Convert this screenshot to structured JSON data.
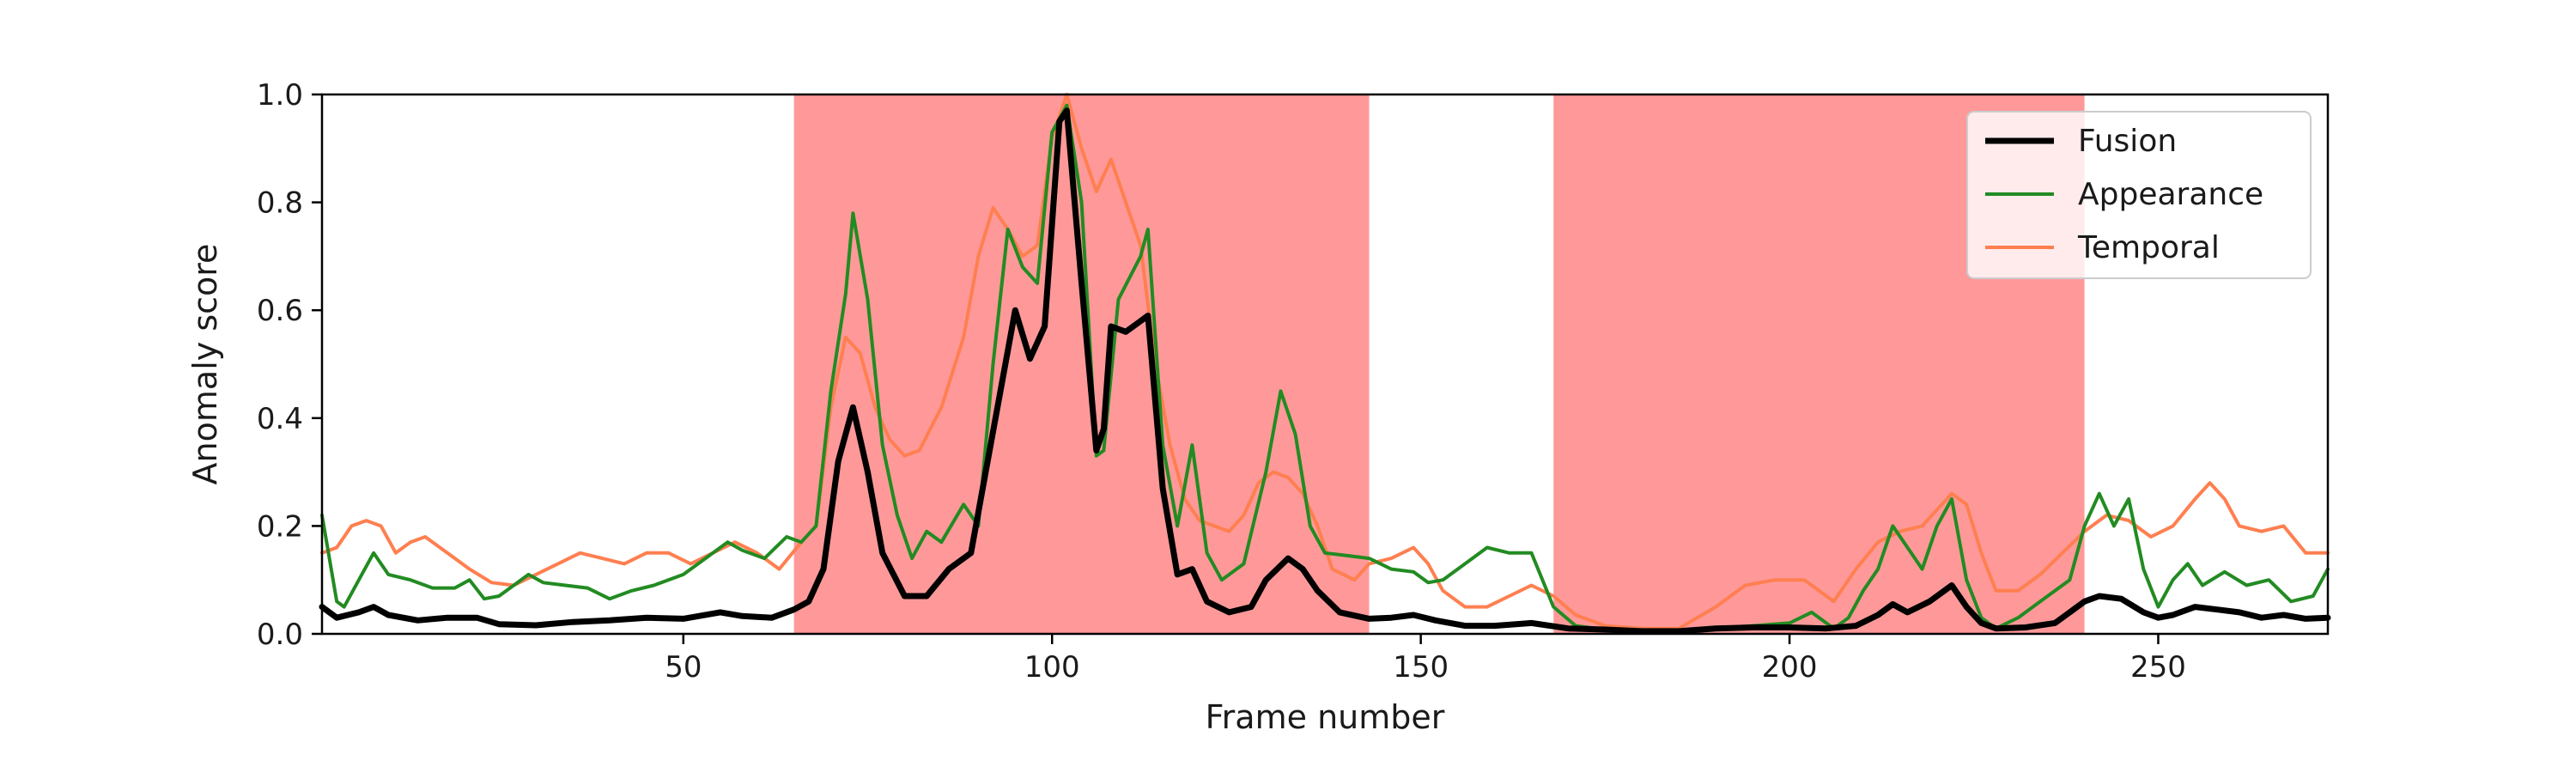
{
  "chart_data": {
    "type": "line",
    "xlabel": "Frame number",
    "ylabel": "Anomaly score",
    "xlim": [
      1,
      273
    ],
    "ylim": [
      0,
      1.0
    ],
    "x_ticks": [
      50,
      100,
      150,
      200,
      250
    ],
    "y_ticks": [
      0.0,
      0.2,
      0.4,
      0.6,
      0.8,
      1.0
    ],
    "y_tick_labels": [
      "0.0",
      "0.2",
      "0.4",
      "0.6",
      "0.8",
      "1.0"
    ],
    "grid": false,
    "legend_position": "top-right",
    "shaded_regions": [
      {
        "start": 65,
        "end": 143,
        "color": "#ff9999"
      },
      {
        "start": 168,
        "end": 240,
        "color": "#ff9999"
      }
    ],
    "series": [
      {
        "name": "Fusion",
        "color": "#000000",
        "line_width": 7,
        "points": [
          [
            1,
            0.05
          ],
          [
            3,
            0.03
          ],
          [
            6,
            0.04
          ],
          [
            8,
            0.05
          ],
          [
            10,
            0.035
          ],
          [
            14,
            0.025
          ],
          [
            18,
            0.03
          ],
          [
            22,
            0.03
          ],
          [
            25,
            0.018
          ],
          [
            30,
            0.016
          ],
          [
            35,
            0.022
          ],
          [
            40,
            0.025
          ],
          [
            45,
            0.03
          ],
          [
            50,
            0.028
          ],
          [
            55,
            0.04
          ],
          [
            58,
            0.033
          ],
          [
            62,
            0.03
          ],
          [
            65,
            0.045
          ],
          [
            67,
            0.06
          ],
          [
            69,
            0.12
          ],
          [
            71,
            0.32
          ],
          [
            73,
            0.42
          ],
          [
            75,
            0.3
          ],
          [
            77,
            0.15
          ],
          [
            80,
            0.07
          ],
          [
            83,
            0.07
          ],
          [
            86,
            0.12
          ],
          [
            89,
            0.15
          ],
          [
            91,
            0.3
          ],
          [
            93,
            0.45
          ],
          [
            95,
            0.6
          ],
          [
            97,
            0.51
          ],
          [
            99,
            0.57
          ],
          [
            101,
            0.95
          ],
          [
            102,
            0.97
          ],
          [
            104,
            0.65
          ],
          [
            106,
            0.34
          ],
          [
            107,
            0.38
          ],
          [
            108,
            0.57
          ],
          [
            110,
            0.56
          ],
          [
            112,
            0.58
          ],
          [
            113,
            0.59
          ],
          [
            115,
            0.27
          ],
          [
            117,
            0.11
          ],
          [
            119,
            0.12
          ],
          [
            121,
            0.06
          ],
          [
            124,
            0.04
          ],
          [
            127,
            0.05
          ],
          [
            129,
            0.1
          ],
          [
            132,
            0.14
          ],
          [
            134,
            0.12
          ],
          [
            136,
            0.08
          ],
          [
            139,
            0.04
          ],
          [
            143,
            0.028
          ],
          [
            146,
            0.03
          ],
          [
            149,
            0.035
          ],
          [
            152,
            0.025
          ],
          [
            156,
            0.015
          ],
          [
            160,
            0.015
          ],
          [
            165,
            0.02
          ],
          [
            170,
            0.01
          ],
          [
            175,
            0.008
          ],
          [
            180,
            0.005
          ],
          [
            185,
            0.005
          ],
          [
            190,
            0.01
          ],
          [
            195,
            0.012
          ],
          [
            200,
            0.012
          ],
          [
            205,
            0.01
          ],
          [
            209,
            0.015
          ],
          [
            212,
            0.035
          ],
          [
            214,
            0.055
          ],
          [
            216,
            0.04
          ],
          [
            219,
            0.06
          ],
          [
            222,
            0.09
          ],
          [
            224,
            0.05
          ],
          [
            226,
            0.02
          ],
          [
            228,
            0.01
          ],
          [
            232,
            0.012
          ],
          [
            236,
            0.02
          ],
          [
            238,
            0.04
          ],
          [
            240,
            0.06
          ],
          [
            242,
            0.07
          ],
          [
            245,
            0.065
          ],
          [
            248,
            0.04
          ],
          [
            250,
            0.03
          ],
          [
            252,
            0.035
          ],
          [
            255,
            0.05
          ],
          [
            258,
            0.045
          ],
          [
            261,
            0.04
          ],
          [
            264,
            0.03
          ],
          [
            267,
            0.035
          ],
          [
            270,
            0.028
          ],
          [
            273,
            0.03
          ]
        ]
      },
      {
        "name": "Appearance",
        "color": "#228b22",
        "line_width": 4,
        "points": [
          [
            1,
            0.22
          ],
          [
            3,
            0.06
          ],
          [
            4,
            0.05
          ],
          [
            6,
            0.1
          ],
          [
            8,
            0.15
          ],
          [
            10,
            0.11
          ],
          [
            13,
            0.1
          ],
          [
            16,
            0.085
          ],
          [
            19,
            0.085
          ],
          [
            21,
            0.1
          ],
          [
            23,
            0.065
          ],
          [
            25,
            0.07
          ],
          [
            27,
            0.09
          ],
          [
            29,
            0.11
          ],
          [
            31,
            0.095
          ],
          [
            34,
            0.09
          ],
          [
            37,
            0.085
          ],
          [
            40,
            0.065
          ],
          [
            43,
            0.08
          ],
          [
            46,
            0.09
          ],
          [
            50,
            0.11
          ],
          [
            53,
            0.14
          ],
          [
            56,
            0.17
          ],
          [
            58,
            0.155
          ],
          [
            61,
            0.14
          ],
          [
            64,
            0.18
          ],
          [
            66,
            0.17
          ],
          [
            68,
            0.2
          ],
          [
            70,
            0.45
          ],
          [
            72,
            0.63
          ],
          [
            73,
            0.78
          ],
          [
            75,
            0.62
          ],
          [
            77,
            0.35
          ],
          [
            79,
            0.22
          ],
          [
            81,
            0.14
          ],
          [
            83,
            0.19
          ],
          [
            85,
            0.17
          ],
          [
            88,
            0.24
          ],
          [
            90,
            0.2
          ],
          [
            92,
            0.5
          ],
          [
            94,
            0.75
          ],
          [
            96,
            0.68
          ],
          [
            98,
            0.65
          ],
          [
            100,
            0.93
          ],
          [
            102,
            0.98
          ],
          [
            104,
            0.8
          ],
          [
            106,
            0.33
          ],
          [
            107,
            0.34
          ],
          [
            109,
            0.62
          ],
          [
            112,
            0.7
          ],
          [
            113,
            0.75
          ],
          [
            115,
            0.35
          ],
          [
            117,
            0.2
          ],
          [
            119,
            0.35
          ],
          [
            121,
            0.15
          ],
          [
            123,
            0.1
          ],
          [
            126,
            0.13
          ],
          [
            129,
            0.3
          ],
          [
            131,
            0.45
          ],
          [
            133,
            0.37
          ],
          [
            135,
            0.2
          ],
          [
            137,
            0.15
          ],
          [
            140,
            0.145
          ],
          [
            143,
            0.14
          ],
          [
            146,
            0.12
          ],
          [
            149,
            0.115
          ],
          [
            151,
            0.095
          ],
          [
            153,
            0.1
          ],
          [
            156,
            0.13
          ],
          [
            159,
            0.16
          ],
          [
            162,
            0.15
          ],
          [
            165,
            0.15
          ],
          [
            168,
            0.05
          ],
          [
            171,
            0.015
          ],
          [
            175,
            0.008
          ],
          [
            180,
            0.005
          ],
          [
            185,
            0.005
          ],
          [
            190,
            0.01
          ],
          [
            195,
            0.015
          ],
          [
            200,
            0.02
          ],
          [
            203,
            0.04
          ],
          [
            206,
            0.01
          ],
          [
            208,
            0.03
          ],
          [
            210,
            0.08
          ],
          [
            212,
            0.12
          ],
          [
            214,
            0.2
          ],
          [
            216,
            0.16
          ],
          [
            218,
            0.12
          ],
          [
            220,
            0.2
          ],
          [
            222,
            0.25
          ],
          [
            224,
            0.1
          ],
          [
            226,
            0.03
          ],
          [
            228,
            0.01
          ],
          [
            231,
            0.03
          ],
          [
            234,
            0.06
          ],
          [
            238,
            0.1
          ],
          [
            240,
            0.2
          ],
          [
            242,
            0.26
          ],
          [
            244,
            0.2
          ],
          [
            246,
            0.25
          ],
          [
            248,
            0.12
          ],
          [
            250,
            0.05
          ],
          [
            252,
            0.1
          ],
          [
            254,
            0.13
          ],
          [
            256,
            0.09
          ],
          [
            259,
            0.115
          ],
          [
            262,
            0.09
          ],
          [
            265,
            0.1
          ],
          [
            268,
            0.06
          ],
          [
            271,
            0.07
          ],
          [
            273,
            0.12
          ]
        ]
      },
      {
        "name": "Temporal",
        "color": "#ff7f50",
        "line_width": 4,
        "points": [
          [
            1,
            0.15
          ],
          [
            3,
            0.16
          ],
          [
            5,
            0.2
          ],
          [
            7,
            0.21
          ],
          [
            9,
            0.2
          ],
          [
            11,
            0.15
          ],
          [
            13,
            0.17
          ],
          [
            15,
            0.18
          ],
          [
            18,
            0.15
          ],
          [
            21,
            0.12
          ],
          [
            24,
            0.095
          ],
          [
            27,
            0.09
          ],
          [
            30,
            0.11
          ],
          [
            33,
            0.13
          ],
          [
            36,
            0.15
          ],
          [
            39,
            0.14
          ],
          [
            42,
            0.13
          ],
          [
            45,
            0.15
          ],
          [
            48,
            0.15
          ],
          [
            51,
            0.13
          ],
          [
            54,
            0.15
          ],
          [
            57,
            0.17
          ],
          [
            60,
            0.15
          ],
          [
            63,
            0.12
          ],
          [
            66,
            0.17
          ],
          [
            68,
            0.2
          ],
          [
            70,
            0.42
          ],
          [
            72,
            0.55
          ],
          [
            74,
            0.52
          ],
          [
            76,
            0.42
          ],
          [
            78,
            0.36
          ],
          [
            80,
            0.33
          ],
          [
            82,
            0.34
          ],
          [
            85,
            0.42
          ],
          [
            88,
            0.55
          ],
          [
            90,
            0.7
          ],
          [
            92,
            0.79
          ],
          [
            94,
            0.75
          ],
          [
            96,
            0.7
          ],
          [
            98,
            0.72
          ],
          [
            100,
            0.92
          ],
          [
            102,
            1.0
          ],
          [
            104,
            0.9
          ],
          [
            106,
            0.82
          ],
          [
            108,
            0.88
          ],
          [
            110,
            0.8
          ],
          [
            112,
            0.72
          ],
          [
            114,
            0.5
          ],
          [
            116,
            0.35
          ],
          [
            118,
            0.25
          ],
          [
            120,
            0.21
          ],
          [
            122,
            0.2
          ],
          [
            124,
            0.19
          ],
          [
            126,
            0.22
          ],
          [
            128,
            0.28
          ],
          [
            130,
            0.3
          ],
          [
            132,
            0.29
          ],
          [
            134,
            0.26
          ],
          [
            136,
            0.2
          ],
          [
            138,
            0.12
          ],
          [
            141,
            0.1
          ],
          [
            143,
            0.13
          ],
          [
            146,
            0.14
          ],
          [
            149,
            0.16
          ],
          [
            151,
            0.13
          ],
          [
            153,
            0.08
          ],
          [
            156,
            0.05
          ],
          [
            159,
            0.05
          ],
          [
            162,
            0.07
          ],
          [
            165,
            0.09
          ],
          [
            168,
            0.07
          ],
          [
            171,
            0.035
          ],
          [
            175,
            0.015
          ],
          [
            180,
            0.01
          ],
          [
            185,
            0.01
          ],
          [
            190,
            0.05
          ],
          [
            194,
            0.09
          ],
          [
            198,
            0.1
          ],
          [
            202,
            0.1
          ],
          [
            206,
            0.06
          ],
          [
            209,
            0.12
          ],
          [
            212,
            0.17
          ],
          [
            215,
            0.19
          ],
          [
            218,
            0.2
          ],
          [
            222,
            0.26
          ],
          [
            224,
            0.24
          ],
          [
            226,
            0.15
          ],
          [
            228,
            0.08
          ],
          [
            231,
            0.08
          ],
          [
            234,
            0.11
          ],
          [
            237,
            0.15
          ],
          [
            240,
            0.19
          ],
          [
            243,
            0.22
          ],
          [
            246,
            0.21
          ],
          [
            249,
            0.18
          ],
          [
            252,
            0.2
          ],
          [
            255,
            0.25
          ],
          [
            257,
            0.28
          ],
          [
            259,
            0.25
          ],
          [
            261,
            0.2
          ],
          [
            264,
            0.19
          ],
          [
            267,
            0.2
          ],
          [
            270,
            0.15
          ],
          [
            273,
            0.15
          ]
        ]
      }
    ]
  }
}
